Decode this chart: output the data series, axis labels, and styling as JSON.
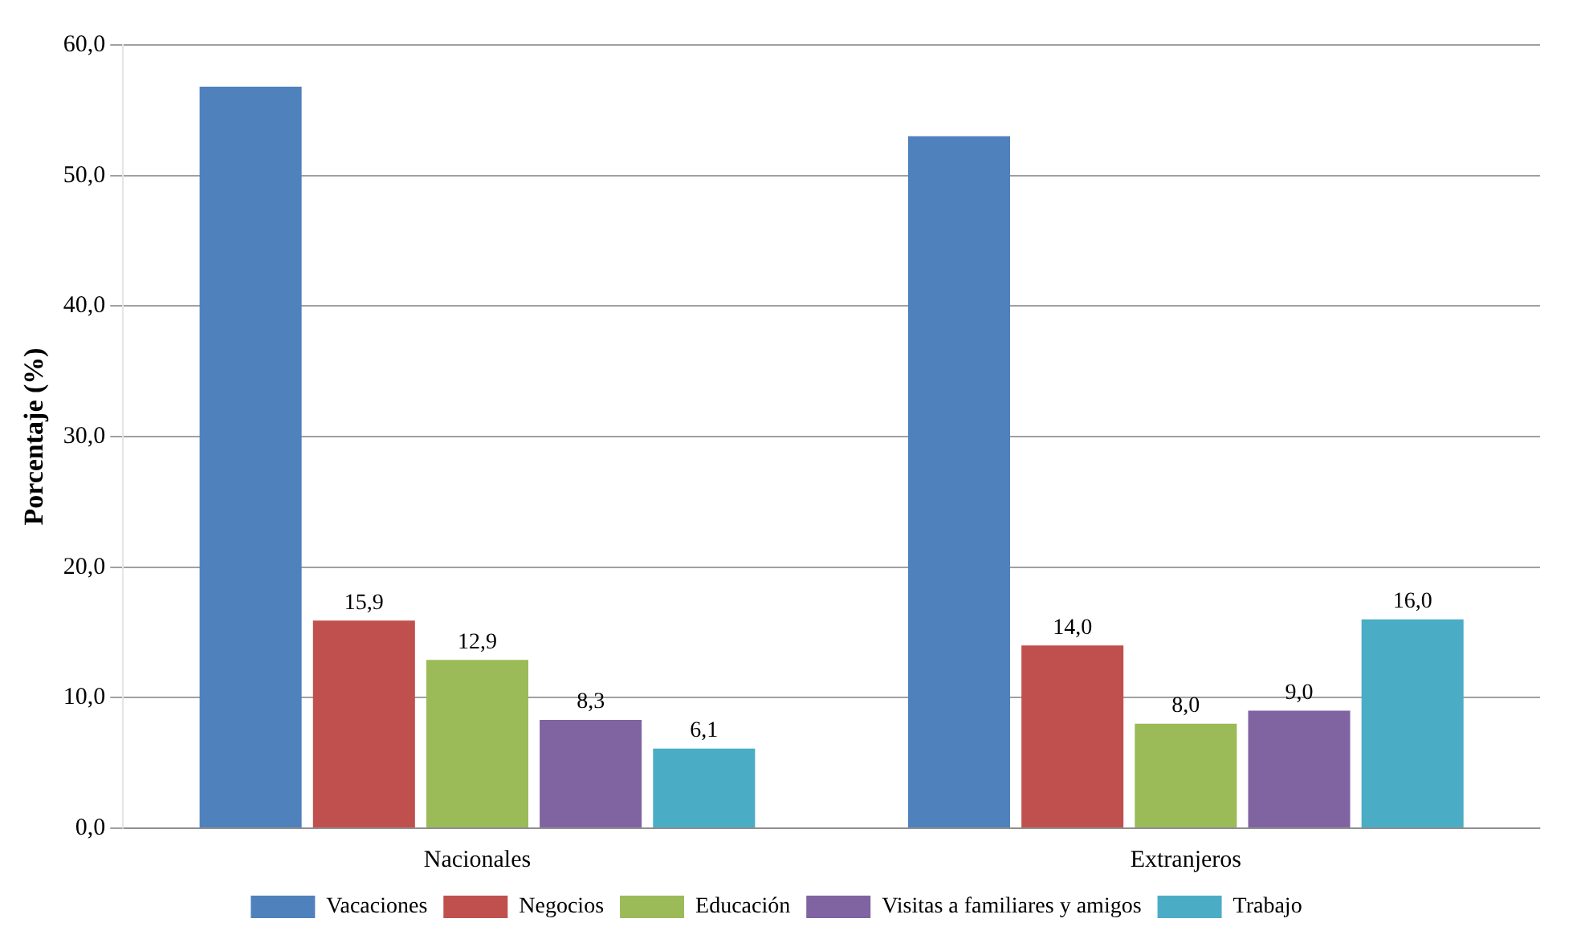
{
  "chart_data": {
    "type": "bar",
    "ylabel": "Porcentaje (%)",
    "categories": [
      "Nacionales",
      "Extranjeros"
    ],
    "series": [
      {
        "name": "Vacaciones",
        "color": "#4f81bd",
        "values": [
          56.8,
          53.0
        ]
      },
      {
        "name": "Negocios",
        "color": "#c0504d",
        "values": [
          15.9,
          14.0
        ],
        "value_labels": [
          "15,9",
          "14,0"
        ]
      },
      {
        "name": "Educación",
        "color": "#9bbb59",
        "values": [
          12.9,
          8.0
        ],
        "value_labels": [
          "12,9",
          "8,0"
        ]
      },
      {
        "name": "Visitas a familiares y amigos",
        "color": "#8064a2",
        "values": [
          8.3,
          9.0
        ],
        "value_labels": [
          "8,3",
          "9,0"
        ]
      },
      {
        "name": "Trabajo",
        "color": "#4bacc6",
        "values": [
          6.1,
          16.0
        ],
        "value_labels": [
          "6,1",
          "16,0"
        ]
      }
    ],
    "ylim": [
      0,
      60
    ],
    "yticks": [
      {
        "value": 0,
        "label": "0,0"
      },
      {
        "value": 10,
        "label": "10,0"
      },
      {
        "value": 20,
        "label": "20,0"
      },
      {
        "value": 30,
        "label": "30,0"
      },
      {
        "value": 40,
        "label": "40,0"
      },
      {
        "value": 50,
        "label": "50,0"
      },
      {
        "value": 60,
        "label": "60,0"
      }
    ],
    "grid": "y",
    "legend": "bottom"
  }
}
